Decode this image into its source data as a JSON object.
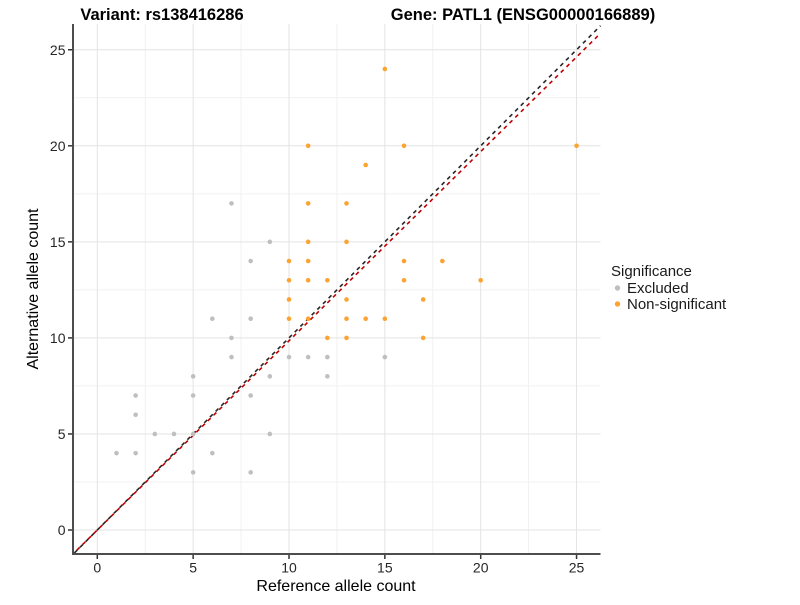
{
  "header": {
    "title_left": "Variant: rs138416286",
    "title_right": "Gene: PATL1 (ENSG00000166889)"
  },
  "axes": {
    "x": {
      "label": "Reference allele count",
      "ticks": [
        0,
        5,
        10,
        15,
        20,
        25
      ]
    },
    "y": {
      "label": "Alternative allele count",
      "ticks": [
        0,
        5,
        10,
        15,
        20,
        25
      ]
    }
  },
  "legend": {
    "title": "Significance",
    "items": [
      {
        "label": "Excluded",
        "color": "#bfbfbf"
      },
      {
        "label": "Non-significant",
        "color": "#fca332"
      }
    ]
  },
  "chart_data": {
    "type": "scatter",
    "title": "",
    "xlabel": "Reference allele count",
    "ylabel": "Alternative allele count",
    "xlim": [
      -1.2,
      26.3
    ],
    "ylim": [
      -1.2,
      26.3
    ],
    "grid": "major+minor",
    "minor_grid_values": [
      2.5,
      7.5,
      12.5,
      17.5,
      22.5
    ],
    "legend_position": "right",
    "series": [
      {
        "name": "Excluded",
        "color": "#bfbfbf",
        "points": [
          [
            1,
            4
          ],
          [
            2,
            4
          ],
          [
            6,
            4
          ],
          [
            5,
            3
          ],
          [
            8,
            3
          ],
          [
            3,
            5
          ],
          [
            4,
            5
          ],
          [
            5,
            5
          ],
          [
            9,
            5
          ],
          [
            2,
            6
          ],
          [
            2,
            7
          ],
          [
            5,
            7
          ],
          [
            8,
            7
          ],
          [
            5,
            8
          ],
          [
            9,
            8
          ],
          [
            12,
            8
          ],
          [
            7,
            9
          ],
          [
            10,
            9
          ],
          [
            11,
            9
          ],
          [
            12,
            9
          ],
          [
            15,
            9
          ],
          [
            7,
            10
          ],
          [
            6,
            11
          ],
          [
            8,
            11
          ],
          [
            8,
            14
          ],
          [
            9,
            15
          ],
          [
            7,
            17
          ]
        ]
      },
      {
        "name": "Non-significant",
        "color": "#fca332",
        "points": [
          [
            15,
            24
          ],
          [
            11,
            20
          ],
          [
            16,
            20
          ],
          [
            25,
            20
          ],
          [
            14,
            19
          ],
          [
            11,
            17
          ],
          [
            13,
            17
          ],
          [
            11,
            15
          ],
          [
            13,
            15
          ],
          [
            10,
            14
          ],
          [
            11,
            14
          ],
          [
            16,
            14
          ],
          [
            18,
            14
          ],
          [
            10,
            13
          ],
          [
            11,
            13
          ],
          [
            12,
            13
          ],
          [
            16,
            13
          ],
          [
            20,
            13
          ],
          [
            10,
            12
          ],
          [
            13,
            12
          ],
          [
            17,
            12
          ],
          [
            10,
            11
          ],
          [
            11,
            11
          ],
          [
            13,
            11
          ],
          [
            14,
            11
          ],
          [
            15,
            11
          ],
          [
            12,
            10
          ],
          [
            13,
            10
          ],
          [
            17,
            10
          ]
        ]
      }
    ],
    "reference_lines": [
      {
        "name": "identity",
        "slope": 1,
        "intercept": 0,
        "color": "#262626",
        "dash": "dashed"
      },
      {
        "name": "expected",
        "slope": 0.985,
        "intercept": 0,
        "color": "#c00000",
        "dash": "dashed"
      }
    ]
  },
  "colors": {
    "major_grid": "#e3e3e3",
    "minor_grid": "#f1f1f1",
    "axis_line": "#4d4d4d",
    "tick_mark": "#333333"
  }
}
